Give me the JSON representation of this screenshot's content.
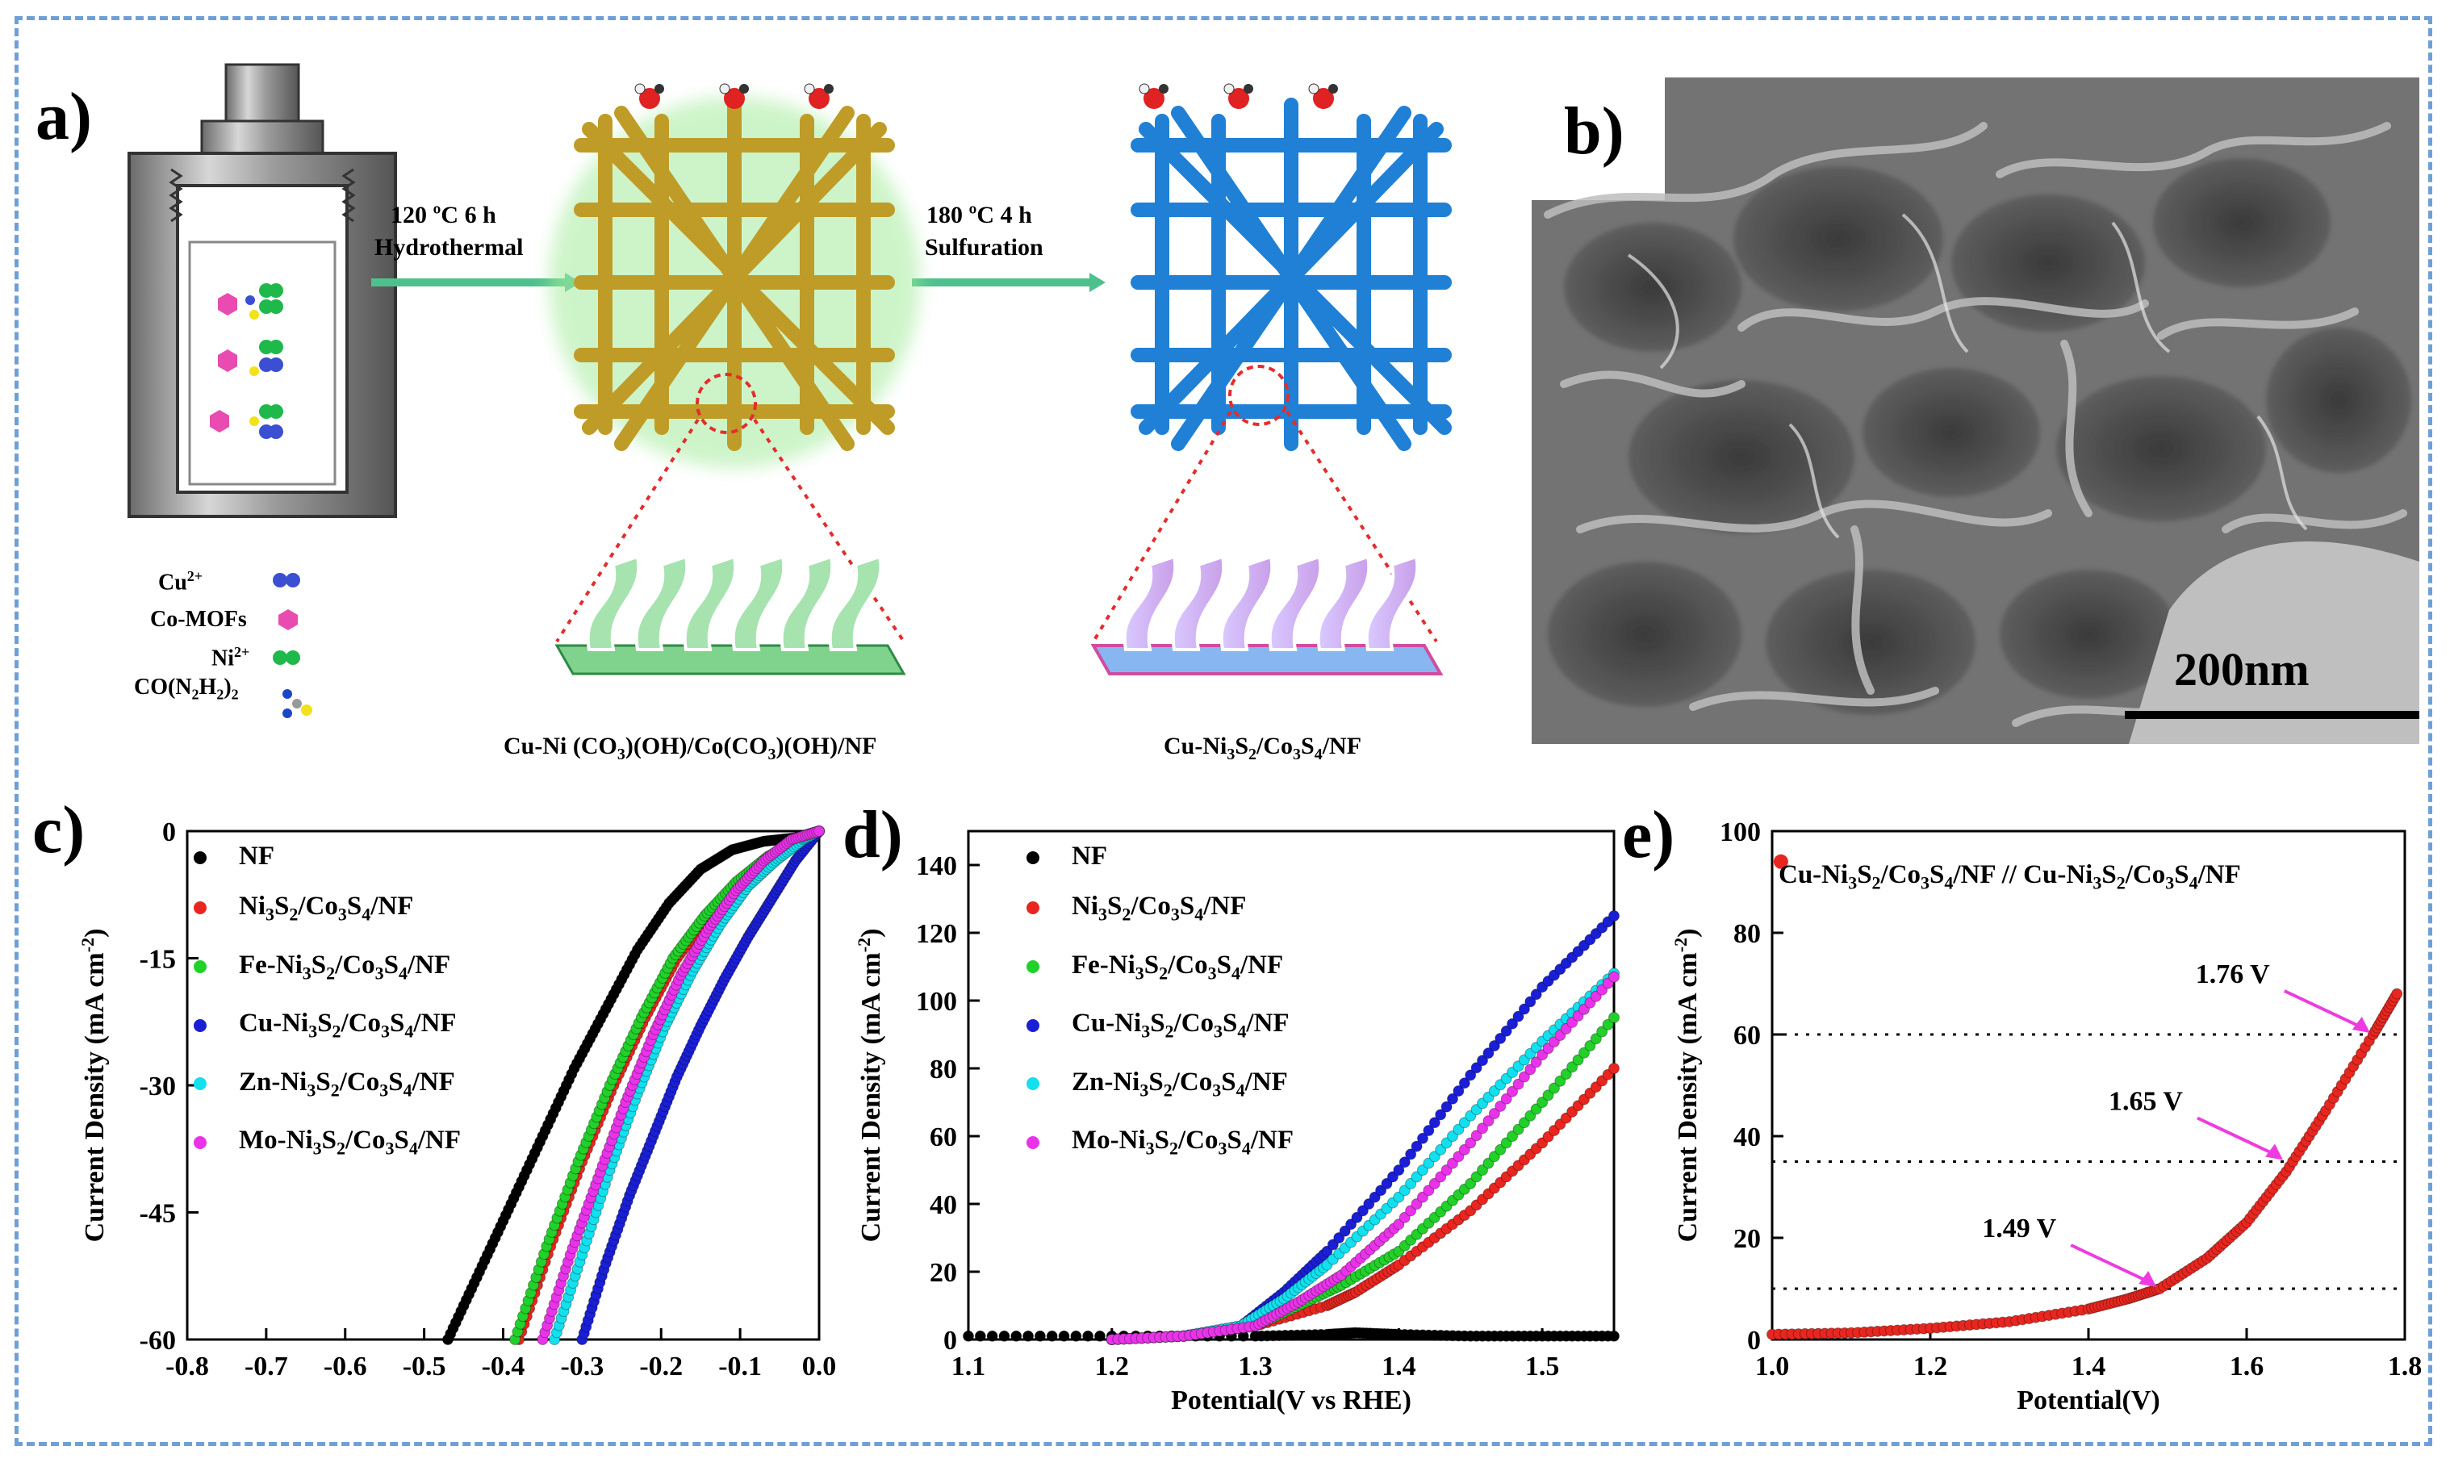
{
  "panel_a": {
    "letter": "a)",
    "step1": {
      "temp": "120 ºC  6 h",
      "method": "Hydrothermal"
    },
    "step2": {
      "temp": "180 ºC  4 h",
      "method": "Sulfuration"
    },
    "legend": [
      "Cu2+",
      "Co-MOFs",
      "Ni2+",
      "CO(N2H2)2"
    ],
    "legend_colors": [
      "#3a4fd1",
      "#e94bb0",
      "#1fb84a",
      "#f2e21c"
    ],
    "caption_left": "Cu-Ni (CO3)(OH)/Co(CO3)(OH)/NF",
    "caption_right": "Cu-Ni3S2/Co3S4/NF"
  },
  "panel_b": {
    "letter": "b)",
    "scalebar": "200nm"
  },
  "chart_data": [
    {
      "panel": "c)",
      "type": "scatter",
      "xlabel": "",
      "ylabel": "Current Density (mA cm-2)",
      "xlim": [
        -0.8,
        0.0
      ],
      "ylim": [
        -60,
        0
      ],
      "xticks": [
        "-0.8",
        "-0.7",
        "-0.6",
        "-0.5",
        "-0.4",
        "-0.3",
        "-0.2",
        "-0.1",
        "0.0"
      ],
      "yticks": [
        "0",
        "-15",
        "-30",
        "-45",
        "-60"
      ],
      "series": [
        {
          "name": "NF",
          "color": "#000000",
          "x": [
            -0.47,
            -0.43,
            -0.39,
            -0.35,
            -0.31,
            -0.27,
            -0.23,
            -0.19,
            -0.15,
            -0.11,
            -0.07,
            -0.03,
            0.0
          ],
          "y": [
            -60,
            -52,
            -44,
            -36,
            -28,
            -21,
            -14,
            -8.5,
            -4.5,
            -2.2,
            -1.2,
            -0.8,
            0
          ]
        },
        {
          "name": "Ni3S2/Co3S4/NF",
          "color": "#e8261f",
          "x": [
            -0.38,
            -0.34,
            -0.3,
            -0.26,
            -0.22,
            -0.18,
            -0.14,
            -0.1,
            -0.06,
            -0.02,
            0.0
          ],
          "y": [
            -60,
            -49,
            -39,
            -30,
            -22,
            -15,
            -10,
            -6,
            -3,
            -1,
            0
          ]
        },
        {
          "name": "Fe-Ni3S2/Co3S4/NF",
          "color": "#22d02a",
          "x": [
            -0.385,
            -0.345,
            -0.305,
            -0.265,
            -0.225,
            -0.185,
            -0.145,
            -0.105,
            -0.065,
            -0.025,
            0.0
          ],
          "y": [
            -60,
            -49,
            -39,
            -30,
            -22,
            -15,
            -10,
            -6,
            -3,
            -1,
            0
          ]
        },
        {
          "name": "Cu-Ni3S2/Co3S4/NF",
          "color": "#1a1fd6",
          "x": [
            -0.3,
            -0.27,
            -0.24,
            -0.21,
            -0.18,
            -0.15,
            -0.12,
            -0.09,
            -0.06,
            -0.03,
            0.0
          ],
          "y": [
            -60,
            -51,
            -43,
            -36,
            -29,
            -23,
            -17.5,
            -12.5,
            -8,
            -3.5,
            0
          ]
        },
        {
          "name": "Zn-Ni3S2/Co3S4/NF",
          "color": "#12e0ee",
          "x": [
            -0.335,
            -0.3,
            -0.265,
            -0.23,
            -0.195,
            -0.16,
            -0.125,
            -0.09,
            -0.055,
            -0.02,
            0.0
          ],
          "y": [
            -60,
            -50,
            -40,
            -31,
            -23,
            -16.5,
            -11,
            -6.5,
            -3.5,
            -1,
            0
          ]
        },
        {
          "name": "Mo-Ni3S2/Co3S4/NF",
          "color": "#e933e9",
          "x": [
            -0.35,
            -0.315,
            -0.28,
            -0.245,
            -0.21,
            -0.175,
            -0.14,
            -0.105,
            -0.07,
            -0.035,
            0.0
          ],
          "y": [
            -60,
            -50,
            -41,
            -32,
            -24,
            -17,
            -11.5,
            -7,
            -3.5,
            -1,
            0
          ]
        }
      ]
    },
    {
      "panel": "d)",
      "type": "scatter",
      "xlabel": "Potential(V vs RHE)",
      "ylabel": "Current Density (mA cm-2)",
      "xlim": [
        1.1,
        1.55
      ],
      "ylim": [
        0,
        150
      ],
      "xticks": [
        "1.1",
        "1.2",
        "1.3",
        "1.4",
        "1.5"
      ],
      "yticks": [
        "0",
        "20",
        "40",
        "60",
        "80",
        "100",
        "120",
        "140"
      ],
      "series": [
        {
          "name": "NF",
          "color": "#000000",
          "x": [
            1.1,
            1.2,
            1.3,
            1.35,
            1.37,
            1.4,
            1.45,
            1.5,
            1.55
          ],
          "y": [
            1,
            1,
            1,
            1.5,
            2,
            1.5,
            1,
            1,
            1
          ]
        },
        {
          "name": "Ni3S2/Co3S4/NF",
          "color": "#e8261f",
          "x": [
            1.2,
            1.25,
            1.3,
            1.35,
            1.37,
            1.4,
            1.45,
            1.5,
            1.55
          ],
          "y": [
            0,
            1,
            4,
            10,
            14,
            22,
            38,
            58,
            80
          ]
        },
        {
          "name": "Fe-Ni3S2/Co3S4/NF",
          "color": "#22d02a",
          "x": [
            1.2,
            1.25,
            1.3,
            1.33,
            1.36,
            1.4,
            1.45,
            1.5,
            1.55
          ],
          "y": [
            0,
            1,
            4,
            10,
            16,
            26,
            46,
            70,
            95
          ]
        },
        {
          "name": "Cu-Ni3S2/Co3S4/NF",
          "color": "#1a1fd6",
          "x": [
            1.2,
            1.25,
            1.29,
            1.32,
            1.35,
            1.4,
            1.45,
            1.5,
            1.55
          ],
          "y": [
            0,
            1,
            4,
            14,
            26,
            50,
            78,
            104,
            125
          ]
        },
        {
          "name": "Zn-Ni3S2/Co3S4/NF",
          "color": "#12e0ee",
          "x": [
            1.2,
            1.25,
            1.29,
            1.32,
            1.35,
            1.4,
            1.45,
            1.5,
            1.55
          ],
          "y": [
            0,
            1,
            4,
            12,
            22,
            42,
            66,
            88,
            108
          ]
        },
        {
          "name": "Mo-Ni3S2/Co3S4/NF",
          "color": "#e933e9",
          "x": [
            1.2,
            1.25,
            1.3,
            1.33,
            1.36,
            1.4,
            1.45,
            1.5,
            1.55
          ],
          "y": [
            0,
            1,
            4,
            11,
            19,
            34,
            58,
            84,
            107
          ]
        }
      ]
    },
    {
      "panel": "e)",
      "type": "scatter",
      "xlabel": "Potential(V)",
      "ylabel": "Current Density (mA cm-2)",
      "xlim": [
        1.0,
        1.8
      ],
      "ylim": [
        0,
        100
      ],
      "xticks": [
        "1.0",
        "1.2",
        "1.4",
        "1.6",
        "1.8"
      ],
      "yticks": [
        "0",
        "20",
        "40",
        "60",
        "80",
        "100"
      ],
      "title": "Cu-Ni3S2/Co3S4/NF // Cu-Ni3S2/Co3S4/NF",
      "series": [
        {
          "name": "Cu-Ni3S2/Co3S4/NF // Cu-Ni3S2/Co3S4/NF",
          "color": "#e8261f",
          "x": [
            1.0,
            1.1,
            1.2,
            1.3,
            1.4,
            1.45,
            1.49,
            1.55,
            1.6,
            1.65,
            1.7,
            1.76,
            1.79
          ],
          "y": [
            1,
            1.3,
            2.2,
            3.5,
            6,
            8,
            10,
            16,
            23,
            33,
            45,
            60,
            68
          ]
        }
      ],
      "annotations": [
        {
          "text": "1.49 V",
          "x": 1.49,
          "y": 10
        },
        {
          "text": "1.65 V",
          "x": 1.65,
          "y": 35
        },
        {
          "text": "1.76 V",
          "x": 1.76,
          "y": 60
        }
      ],
      "hlines": [
        10,
        35,
        60
      ],
      "outlier_point": {
        "x": 1.005,
        "y": 94
      }
    }
  ]
}
